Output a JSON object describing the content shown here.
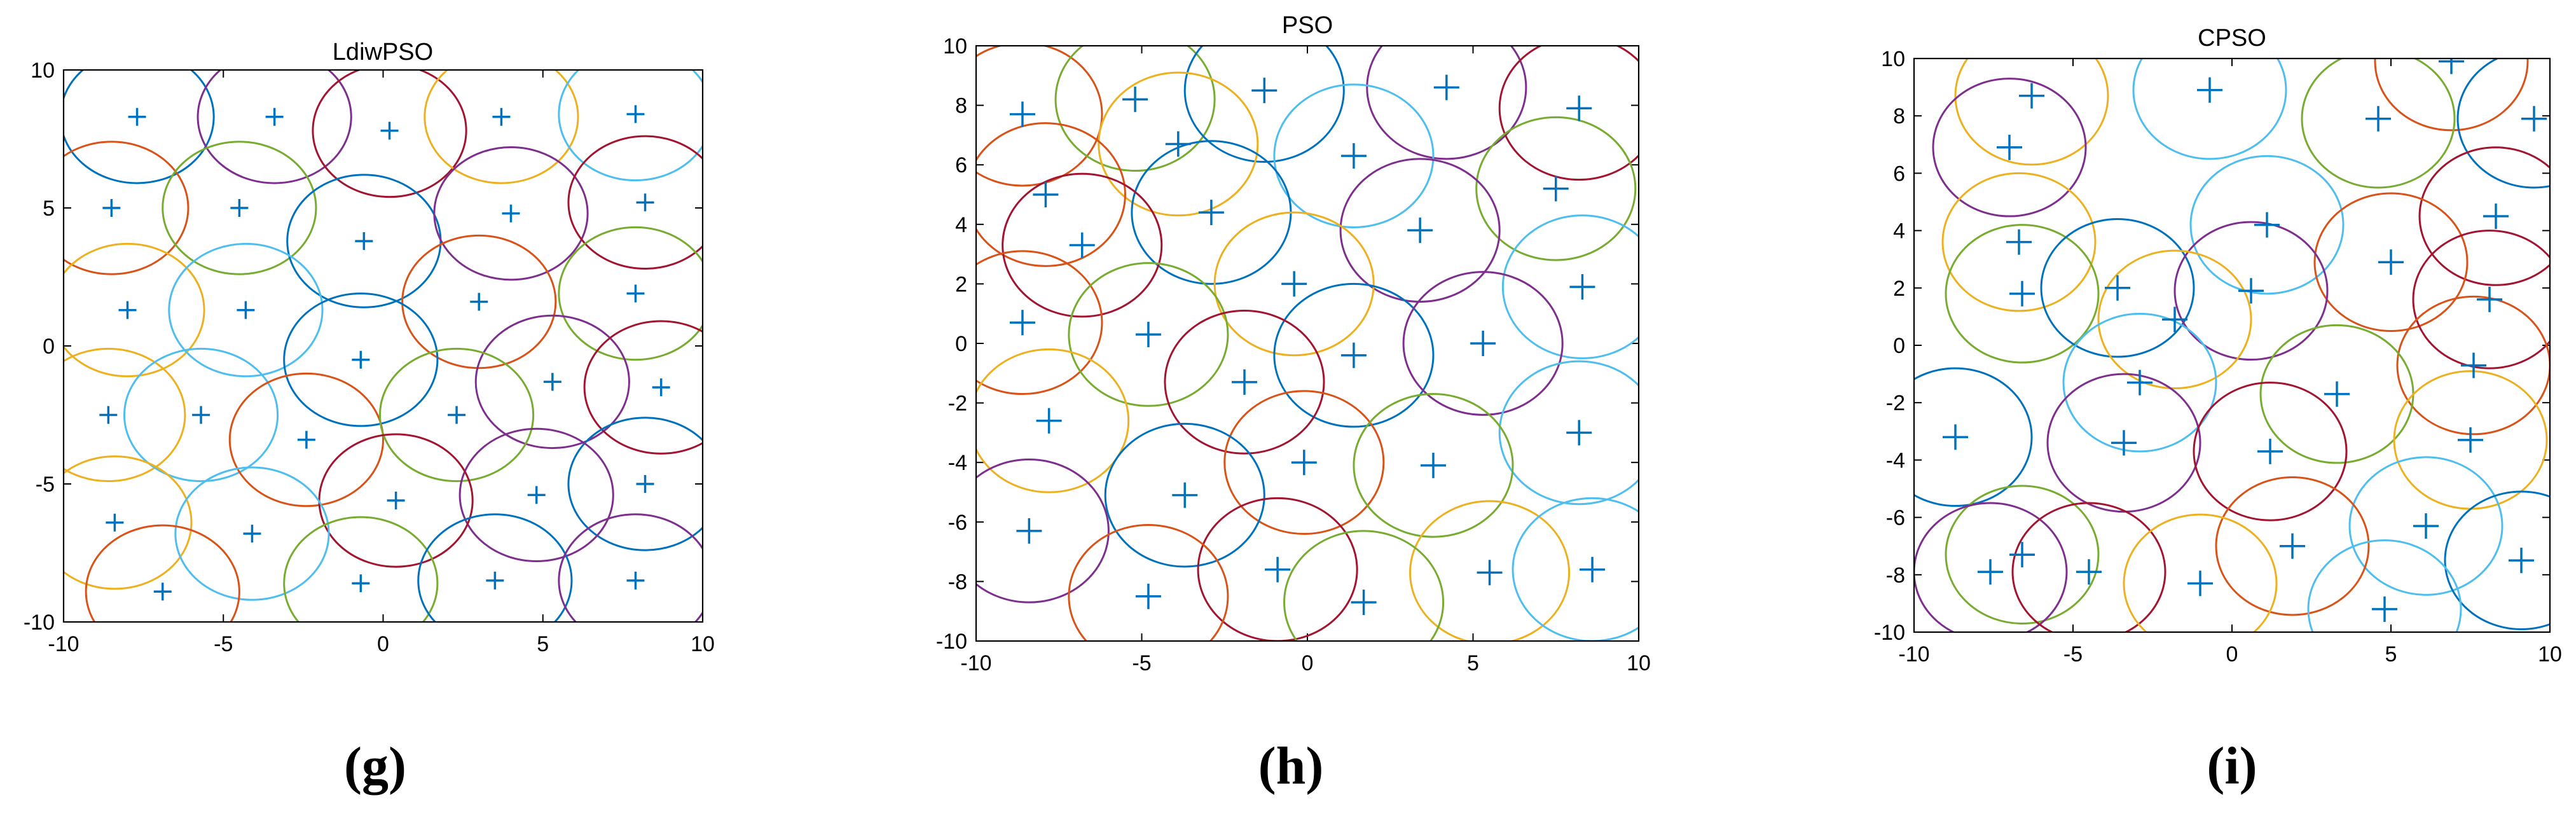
{
  "figure": {
    "captions": [
      "(g)",
      "(h)",
      "(i)"
    ]
  },
  "colors": {
    "marker": "#0072BD",
    "palette": [
      "#0072BD",
      "#D95319",
      "#EDB120",
      "#7E2F8E",
      "#77AC30",
      "#4DBEEE",
      "#A2142F"
    ]
  },
  "chart_data": [
    {
      "type": "scatter",
      "title": "LdiwPSO",
      "caption": "(g)",
      "xlim": [
        -10,
        10
      ],
      "ylim": [
        -10,
        10
      ],
      "xticks": [
        -10,
        -5,
        0,
        5,
        10
      ],
      "yticks": [
        -10,
        -5,
        0,
        5,
        10
      ],
      "radius": 2.4,
      "grid": false,
      "points": [
        [
          -7.7,
          8.3
        ],
        [
          -3.4,
          8.3
        ],
        [
          0.2,
          7.8
        ],
        [
          3.7,
          8.3
        ],
        [
          7.9,
          8.4
        ],
        [
          -8.5,
          5.0
        ],
        [
          -4.5,
          5.0
        ],
        [
          -0.6,
          3.8
        ],
        [
          4.0,
          4.8
        ],
        [
          8.2,
          5.2
        ],
        [
          -8.0,
          1.3
        ],
        [
          -4.3,
          1.3
        ],
        [
          3.0,
          1.6
        ],
        [
          7.9,
          1.9
        ],
        [
          -0.7,
          -0.5
        ],
        [
          5.3,
          -1.3
        ],
        [
          8.7,
          -1.5
        ],
        [
          -8.6,
          -2.5
        ],
        [
          -5.7,
          -2.5
        ],
        [
          -2.4,
          -3.4
        ],
        [
          2.3,
          -2.5
        ],
        [
          8.2,
          -5.0
        ],
        [
          4.8,
          -5.4
        ],
        [
          0.4,
          -5.6
        ],
        [
          -8.4,
          -6.4
        ],
        [
          -4.1,
          -6.8
        ],
        [
          -6.9,
          -8.9
        ],
        [
          -0.7,
          -8.6
        ],
        [
          3.5,
          -8.5
        ],
        [
          7.9,
          -8.5
        ]
      ]
    },
    {
      "type": "scatter",
      "title": "PSO",
      "caption": "(h)",
      "xlim": [
        -10,
        10
      ],
      "ylim": [
        -10,
        10
      ],
      "xticks": [
        -10,
        -5,
        0,
        5,
        10
      ],
      "yticks": [
        -10,
        -8,
        -6,
        -4,
        -2,
        0,
        2,
        4,
        6,
        8,
        10
      ],
      "radius": 2.4,
      "grid": false,
      "points": [
        [
          -8.6,
          7.7
        ],
        [
          -5.2,
          8.2
        ],
        [
          -1.3,
          8.5
        ],
        [
          4.2,
          8.6
        ],
        [
          8.2,
          7.9
        ],
        [
          -3.9,
          6.7
        ],
        [
          1.4,
          6.3
        ],
        [
          -7.9,
          5.0
        ],
        [
          7.5,
          5.2
        ],
        [
          -2.9,
          4.4
        ],
        [
          3.4,
          3.8
        ],
        [
          -6.8,
          3.3
        ],
        [
          -0.4,
          2.0
        ],
        [
          8.3,
          1.9
        ],
        [
          -8.6,
          0.7
        ],
        [
          -4.8,
          0.3
        ],
        [
          1.4,
          -0.4
        ],
        [
          5.3,
          0.0
        ],
        [
          -1.9,
          -1.3
        ],
        [
          -7.8,
          -2.6
        ],
        [
          8.2,
          -3.0
        ],
        [
          -0.1,
          -4.0
        ],
        [
          3.8,
          -4.1
        ],
        [
          -3.7,
          -5.1
        ],
        [
          -8.4,
          -6.3
        ],
        [
          -0.9,
          -7.6
        ],
        [
          5.5,
          -7.7
        ],
        [
          8.6,
          -7.6
        ],
        [
          -4.8,
          -8.5
        ],
        [
          1.7,
          -8.7
        ]
      ]
    },
    {
      "type": "scatter",
      "title": "CPSO",
      "caption": "(i)",
      "xlim": [
        -10,
        10
      ],
      "ylim": [
        -10,
        10
      ],
      "xticks": [
        -10,
        -5,
        0,
        5,
        10
      ],
      "yticks": [
        -10,
        -8,
        -6,
        -4,
        -2,
        0,
        2,
        4,
        6,
        8,
        10
      ],
      "radius": 2.4,
      "grid": false,
      "points": [
        [
          -6.3,
          8.7
        ],
        [
          -0.7,
          8.9
        ],
        [
          6.9,
          9.9
        ],
        [
          4.6,
          7.9
        ],
        [
          9.5,
          7.9
        ],
        [
          -7.0,
          6.9
        ],
        [
          8.3,
          4.5
        ],
        [
          -6.7,
          3.6
        ],
        [
          1.1,
          4.2
        ],
        [
          5.0,
          2.9
        ],
        [
          -6.6,
          1.8
        ],
        [
          -3.6,
          2.0
        ],
        [
          0.6,
          1.9
        ],
        [
          8.1,
          1.6
        ],
        [
          -1.8,
          0.9
        ],
        [
          -2.9,
          -1.3
        ],
        [
          7.6,
          -0.7
        ],
        [
          3.3,
          -1.7
        ],
        [
          -8.7,
          -3.2
        ],
        [
          -3.4,
          -3.4
        ],
        [
          1.2,
          -3.7
        ],
        [
          7.5,
          -3.3
        ],
        [
          6.1,
          -6.3
        ],
        [
          1.9,
          -7.0
        ],
        [
          -6.6,
          -7.3
        ],
        [
          9.1,
          -7.5
        ],
        [
          -7.6,
          -7.9
        ],
        [
          -4.5,
          -7.9
        ],
        [
          -1.0,
          -8.3
        ],
        [
          4.8,
          -9.2
        ]
      ]
    }
  ]
}
